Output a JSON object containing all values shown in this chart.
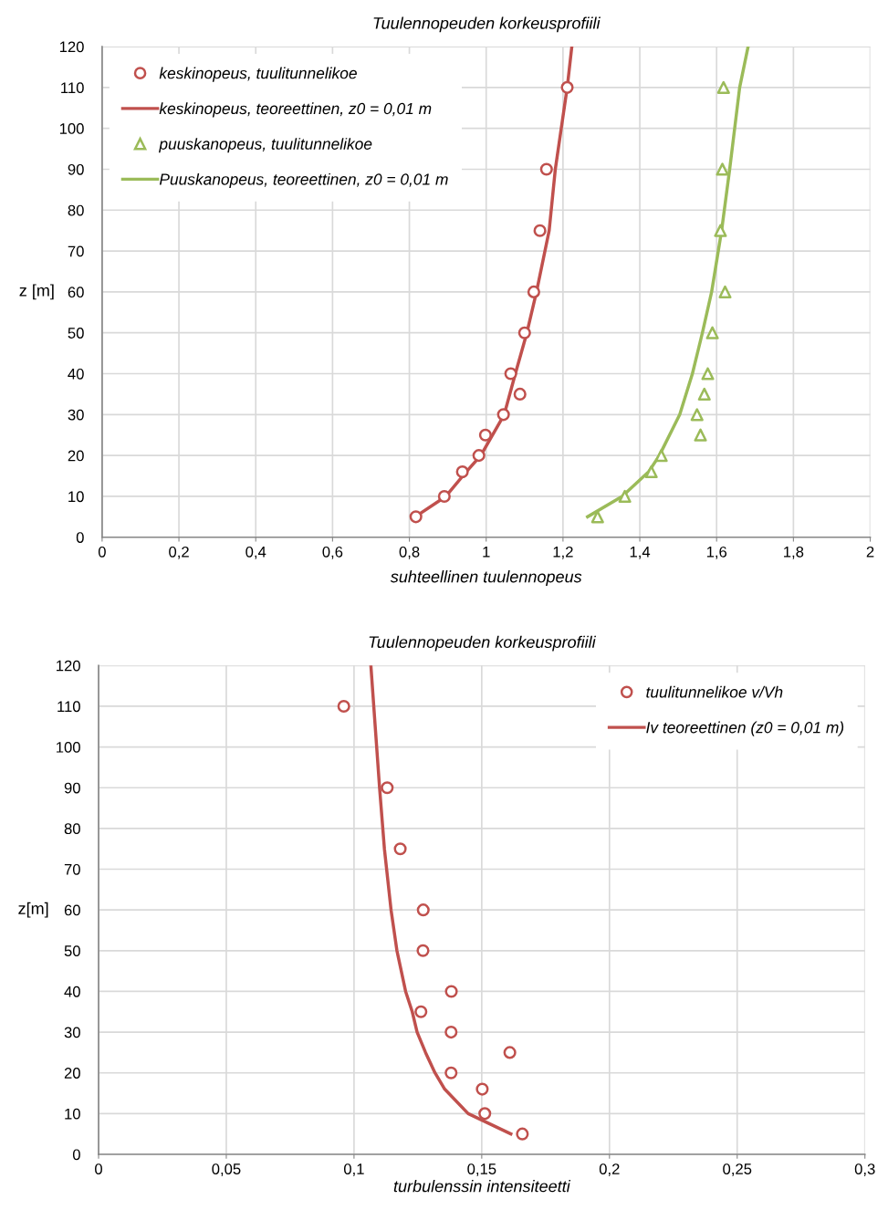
{
  "chart_data": [
    {
      "type": "scatter",
      "title": "Tuulennopeuden korkeusprofiili",
      "xlabel": "suhteellinen tuulennopeus",
      "ylabel": "z [m]",
      "xlim": [
        0,
        2
      ],
      "ylim": [
        0,
        120
      ],
      "xticks": [
        0,
        {
          "value": 0.2,
          "label": "0,2"
        },
        {
          "value": 0.4,
          "label": "0,4"
        },
        {
          "value": 0.6,
          "label": "0,6"
        },
        {
          "value": 0.8,
          "label": "0,8"
        },
        1,
        {
          "value": 1.2,
          "label": "1,2"
        },
        {
          "value": 1.4,
          "label": "1,4"
        },
        {
          "value": 1.6,
          "label": "1,6"
        },
        {
          "value": 1.8,
          "label": "1,8"
        },
        2
      ],
      "yticks": [
        0,
        10,
        20,
        30,
        40,
        50,
        60,
        70,
        80,
        90,
        100,
        110,
        120
      ],
      "grid": true,
      "legend": "top left",
      "series": [
        {
          "name": "keskinopeus, tuulitunnelikoe",
          "marker": "circle",
          "color": "#c0504d",
          "x": [
            0.817,
            0.891,
            0.938,
            0.981,
            0.998,
            1.045,
            1.088,
            1.064,
            1.1,
            1.124,
            1.14,
            1.157,
            1.211
          ],
          "values": [
            5,
            10,
            16,
            20,
            25,
            30,
            35,
            40,
            50,
            60,
            75,
            90,
            110
          ]
        },
        {
          "name": "keskinopeus, teoreettinen, z0 = 0,01 m",
          "type": "line",
          "marker": "none",
          "color": "#c0504d",
          "x": [
            0.815,
            0.895,
            0.948,
            0.986,
            1.047,
            1.076,
            1.106,
            1.131,
            1.164,
            1.18,
            1.211,
            1.223
          ],
          "values": [
            5,
            10,
            16,
            20,
            30,
            40,
            50,
            60,
            75,
            90,
            110,
            120
          ]
        },
        {
          "name": "puuskanopeus, tuulitunnelikoe",
          "marker": "triangle",
          "color": "#9bbb59",
          "x": [
            1.29,
            1.361,
            1.43,
            1.456,
            1.558,
            1.549,
            1.568,
            1.577,
            1.589,
            1.622,
            1.61,
            1.615,
            1.618
          ],
          "values": [
            5,
            10,
            16,
            20,
            25,
            30,
            35,
            40,
            50,
            60,
            75,
            90,
            110
          ]
        },
        {
          "name": "Puuskanopeus, teoreettinen, z0 = 0,01 m",
          "type": "line",
          "marker": "none",
          "color": "#9bbb59",
          "x": [
            1.264,
            1.354,
            1.423,
            1.451,
            1.504,
            1.537,
            1.563,
            1.587,
            1.613,
            1.634,
            1.66,
            1.682
          ],
          "values": [
            5,
            10,
            16,
            20,
            30,
            40,
            50,
            60,
            75,
            90,
            110,
            120
          ]
        }
      ]
    },
    {
      "type": "scatter",
      "title": "Tuulennopeuden korkeusprofiili",
      "xlabel": "turbulenssin intensiteetti",
      "ylabel": "z[m]",
      "xlim": [
        0,
        0.3
      ],
      "ylim": [
        0,
        120
      ],
      "xticks": [
        0,
        {
          "value": 0.05,
          "label": "0,05"
        },
        {
          "value": 0.1,
          "label": "0,1"
        },
        {
          "value": 0.15,
          "label": "0,15"
        },
        {
          "value": 0.2,
          "label": "0,2"
        },
        {
          "value": 0.25,
          "label": "0,25"
        },
        {
          "value": 0.3,
          "label": "0,3"
        }
      ],
      "yticks": [
        0,
        10,
        20,
        30,
        40,
        50,
        60,
        70,
        80,
        90,
        100,
        110,
        120
      ],
      "grid": true,
      "legend": "top right",
      "series": [
        {
          "name": "tuulitunnelikoe v/Vh",
          "marker": "circle",
          "color": "#c0504d",
          "x": [
            0.1659,
            0.1512,
            0.1502,
            0.138,
            0.161,
            0.138,
            0.1262,
            0.1381,
            0.127,
            0.1271,
            0.1181,
            0.113,
            0.096
          ],
          "values": [
            5,
            10,
            16,
            20,
            25,
            30,
            35,
            40,
            50,
            60,
            75,
            90,
            110
          ]
        },
        {
          "name": "Iv teoreettinen (z0 = 0,01 m)",
          "type": "line",
          "marker": "none",
          "color": "#c0504d",
          "x": [
            0.1614,
            0.1447,
            0.1355,
            0.1317,
            0.128,
            0.1247,
            0.1228,
            0.1202,
            0.1168,
            0.1145,
            0.1119,
            0.11,
            0.1066
          ],
          "values": [
            5,
            10,
            16,
            20,
            25,
            30,
            35,
            40,
            50,
            60,
            75,
            90,
            120
          ]
        }
      ]
    }
  ]
}
